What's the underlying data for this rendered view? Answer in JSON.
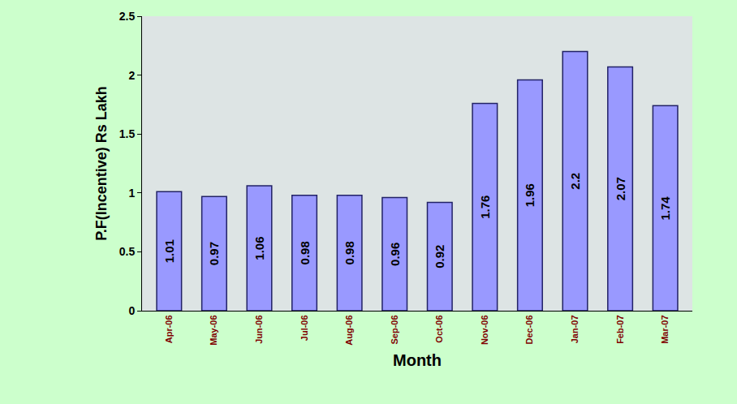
{
  "chart_data": {
    "type": "bar",
    "x_label": "Month",
    "y_label": "P.F(Incentive) Rs Lakh",
    "categories": [
      "Apr-06",
      "May-06",
      "Jun-06",
      "Jul-06",
      "Aug-06",
      "Sep-06",
      "Oct-06",
      "Nov-06",
      "Dec-06",
      "Jan-07",
      "Feb-07",
      "Mar-07"
    ],
    "values": [
      1.01,
      0.97,
      1.06,
      0.98,
      0.98,
      0.96,
      0.92,
      1.76,
      1.96,
      2.2,
      2.07,
      1.74
    ],
    "color": "#9999ff",
    "ylim": [
      0,
      2.5
    ],
    "yticks": [
      0,
      0.5,
      1,
      1.5,
      2,
      2.5
    ],
    "grid": false,
    "data_labels": true
  }
}
